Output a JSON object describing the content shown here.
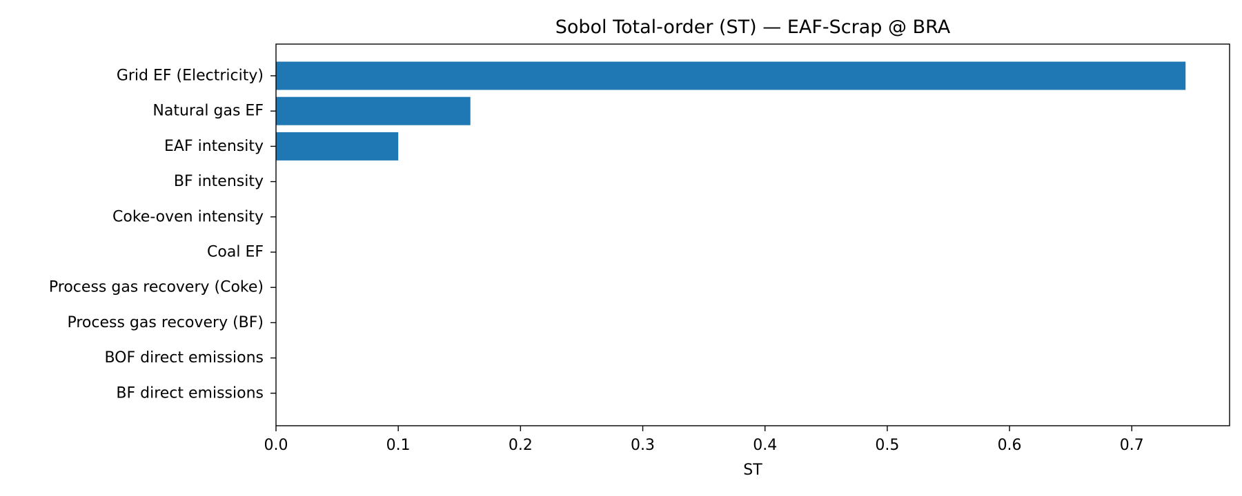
{
  "chart_data": {
    "type": "bar",
    "orientation": "horizontal",
    "title": "Sobol Total-order (ST) — EAF-Scrap @ BRA",
    "xlabel": "ST",
    "ylabel": "",
    "categories": [
      "Grid EF (Electricity)",
      "Natural gas EF",
      "EAF intensity",
      "BF intensity",
      "Coke-oven intensity",
      "Coal EF",
      "Process gas recovery (Coke)",
      "Process gas recovery (BF)",
      "BOF direct emissions",
      "BF direct emissions"
    ],
    "values": [
      0.744,
      0.159,
      0.1,
      0,
      0,
      0,
      0,
      0,
      0,
      0
    ],
    "xlim": [
      0,
      0.78
    ],
    "xticks": [
      "0.0",
      "0.1",
      "0.2",
      "0.3",
      "0.4",
      "0.5",
      "0.6",
      "0.7"
    ],
    "grid": false,
    "legend": "none",
    "bar_color": "#1f77b4"
  }
}
